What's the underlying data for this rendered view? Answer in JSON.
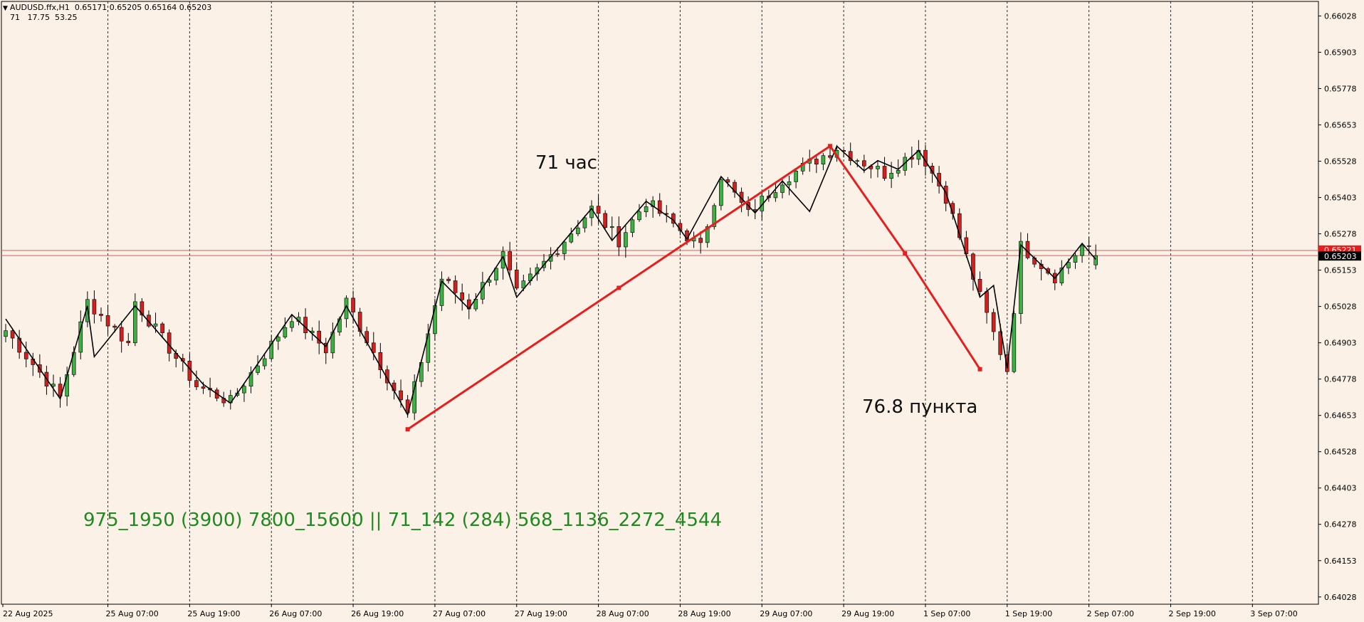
{
  "header": {
    "symbol_line": "AUDUSD.ffx,H1  0.65171 0.65205 0.65164 0.65203",
    "indicator_line": "71   17.75  53.25"
  },
  "annotations": {
    "duration": "71 час",
    "points": "76.8 пункта",
    "sequence": "975_1950 (3900) 7800_15600 || 71_142 (284) 568_1136_2272_4544"
  },
  "colors": {
    "background": "#FBF1E6",
    "bull_candle": "#3CB043",
    "bear_candle": "#D02020",
    "zigzag": "#000000",
    "pattern": "#E81E1E",
    "grid": "#2A2A2A",
    "level_line": "#E85A5A",
    "sequence_text": "#1F8A1F"
  },
  "chart_data": {
    "type": "candlestick",
    "symbol": "AUDUSD.ffx",
    "timeframe": "H1",
    "ohlc_last": {
      "open": 0.65171,
      "high": 0.65205,
      "low": 0.65164,
      "close": 0.65203
    },
    "y_ticks": [
      "0.66028",
      "0.65903",
      "0.65778",
      "0.65653",
      "0.65528",
      "0.65403",
      "0.65278",
      "0.65153",
      "0.65028",
      "0.64903",
      "0.64778",
      "0.64653",
      "0.64528",
      "0.64403",
      "0.64278",
      "0.64153",
      "0.64028"
    ],
    "ylim": [
      0.64003,
      0.66078
    ],
    "x_ticks": [
      "22 Aug 2025",
      "25 Aug 07:00",
      "25 Aug 19:00",
      "26 Aug 07:00",
      "26 Aug 19:00",
      "27 Aug 07:00",
      "27 Aug 19:00",
      "28 Aug 07:00",
      "28 Aug 19:00",
      "29 Aug 07:00",
      "29 Aug 19:00",
      "1 Sep 07:00",
      "1 Sep 19:00",
      "2 Sep 07:00",
      "2 Sep 19:00",
      "3 Sep 07:00"
    ],
    "bar_count": 160,
    "price_labels": {
      "level_1": "0.65221",
      "current": "0.65203"
    },
    "horizontal_levels": [
      0.65221,
      0.65203
    ],
    "key_points": [
      {
        "bar": 0,
        "price": 0.64945
      },
      {
        "bar": 8,
        "price": 0.64715
      },
      {
        "bar": 12,
        "price": 0.65045
      },
      {
        "bar": 18,
        "price": 0.649
      },
      {
        "bar": 19,
        "price": 0.65045
      },
      {
        "bar": 28,
        "price": 0.64755
      },
      {
        "bar": 33,
        "price": 0.647
      },
      {
        "bar": 42,
        "price": 0.64995
      },
      {
        "bar": 47,
        "price": 0.6488
      },
      {
        "bar": 50,
        "price": 0.65045
      },
      {
        "bar": 59,
        "price": 0.64655
      },
      {
        "bar": 64,
        "price": 0.65125
      },
      {
        "bar": 68,
        "price": 0.6503
      },
      {
        "bar": 73,
        "price": 0.65205
      },
      {
        "bar": 75,
        "price": 0.6507
      },
      {
        "bar": 86,
        "price": 0.65365
      },
      {
        "bar": 90,
        "price": 0.65255
      },
      {
        "bar": 94,
        "price": 0.6539
      },
      {
        "bar": 102,
        "price": 0.6523
      },
      {
        "bar": 105,
        "price": 0.6548
      },
      {
        "bar": 109,
        "price": 0.65345
      },
      {
        "bar": 114,
        "price": 0.65465
      },
      {
        "bar": 122,
        "price": 0.65575
      },
      {
        "bar": 129,
        "price": 0.65485
      },
      {
        "bar": 134,
        "price": 0.6557
      },
      {
        "bar": 138,
        "price": 0.65405
      },
      {
        "bar": 143,
        "price": 0.6506
      },
      {
        "bar": 147,
        "price": 0.6481
      },
      {
        "bar": 149,
        "price": 0.65235
      },
      {
        "bar": 154,
        "price": 0.6513
      },
      {
        "bar": 158,
        "price": 0.65235
      },
      {
        "bar": 160,
        "price": 0.652
      }
    ],
    "zigzag": [
      {
        "bar": 0,
        "price": 0.64985
      },
      {
        "bar": 8,
        "price": 0.6471
      },
      {
        "bar": 12,
        "price": 0.6503
      },
      {
        "bar": 13,
        "price": 0.64855
      },
      {
        "bar": 19,
        "price": 0.6503
      },
      {
        "bar": 29,
        "price": 0.6476
      },
      {
        "bar": 33,
        "price": 0.64695
      },
      {
        "bar": 42,
        "price": 0.65
      },
      {
        "bar": 47,
        "price": 0.6489
      },
      {
        "bar": 50,
        "price": 0.6503
      },
      {
        "bar": 59,
        "price": 0.64655
      },
      {
        "bar": 64,
        "price": 0.65115
      },
      {
        "bar": 68,
        "price": 0.6502
      },
      {
        "bar": 73,
        "price": 0.652
      },
      {
        "bar": 75,
        "price": 0.6506
      },
      {
        "bar": 86,
        "price": 0.65365
      },
      {
        "bar": 89,
        "price": 0.65255
      },
      {
        "bar": 94,
        "price": 0.6539
      },
      {
        "bar": 98,
        "price": 0.65325
      },
      {
        "bar": 100,
        "price": 0.6526
      },
      {
        "bar": 105,
        "price": 0.65475
      },
      {
        "bar": 110,
        "price": 0.6535
      },
      {
        "bar": 114,
        "price": 0.6546
      },
      {
        "bar": 118,
        "price": 0.65355
      },
      {
        "bar": 122,
        "price": 0.6558
      },
      {
        "bar": 126,
        "price": 0.65495
      },
      {
        "bar": 128,
        "price": 0.6553
      },
      {
        "bar": 131,
        "price": 0.655
      },
      {
        "bar": 134,
        "price": 0.65565
      },
      {
        "bar": 138,
        "price": 0.6542
      },
      {
        "bar": 143,
        "price": 0.6506
      },
      {
        "bar": 145,
        "price": 0.651
      },
      {
        "bar": 147,
        "price": 0.64815
      },
      {
        "bar": 149,
        "price": 0.6524
      },
      {
        "bar": 154,
        "price": 0.65125
      },
      {
        "bar": 158,
        "price": 0.65245
      },
      {
        "bar": 160,
        "price": 0.6519
      }
    ],
    "pattern_lines": [
      {
        "bar": 59,
        "price": 0.64605
      },
      {
        "bar": 90,
        "price": 0.65092
      },
      {
        "bar": 121,
        "price": 0.6558
      },
      {
        "bar": 132,
        "price": 0.65211
      },
      {
        "bar": 143,
        "price": 0.64812
      }
    ]
  }
}
